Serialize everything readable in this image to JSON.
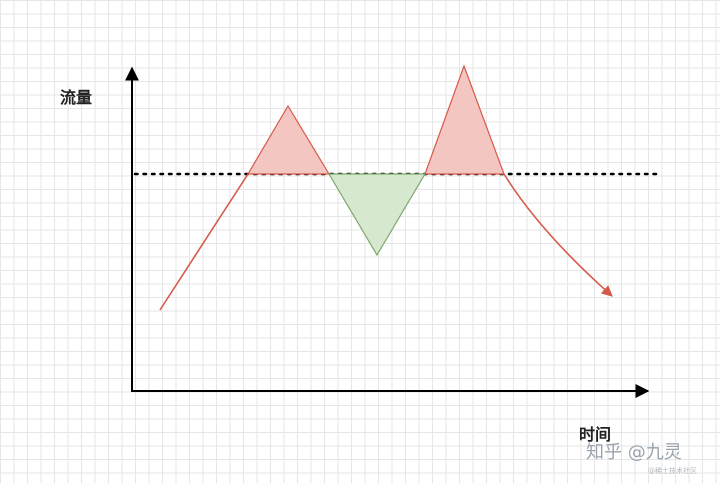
{
  "axes": {
    "y_label": "流量",
    "x_label": "时间"
  },
  "watermark": {
    "text": "知乎 @九灵",
    "sub": "@稀土技术社区"
  },
  "colors": {
    "grid": "#e6e6e6",
    "axis": "#000000",
    "traffic_line": "#d65a4a",
    "excess_fill": "#f3c6c2",
    "deficit_fill": "#d6e8cf",
    "deficit_stroke": "#7ca66a",
    "threshold": "#000000"
  }
}
